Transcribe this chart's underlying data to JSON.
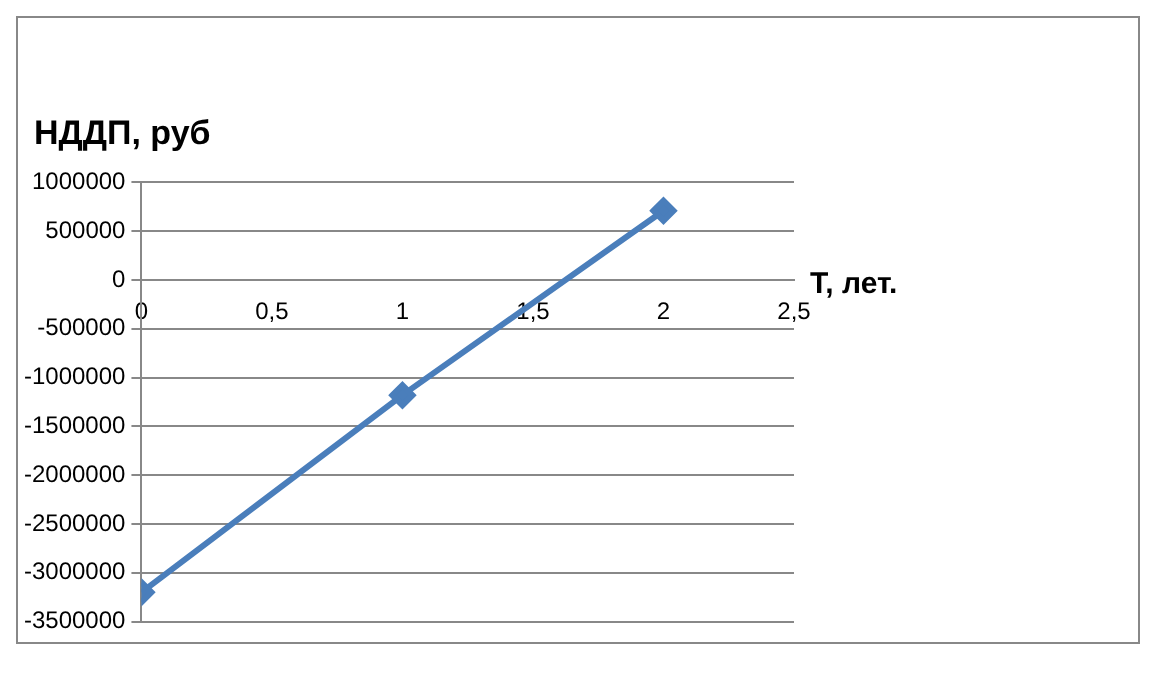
{
  "chart_data": {
    "type": "line",
    "ylabel": "НДДП, руб",
    "xlabel": "Т, лет.",
    "x": [
      0,
      1,
      2
    ],
    "series": [
      {
        "color": "#4a7ebb",
        "values": [
          -3200000,
          -1180000,
          710000
        ]
      }
    ],
    "xlim": [
      0,
      2.5
    ],
    "xticks": [
      0,
      {
        "value": 0.5,
        "label": "0,5"
      },
      1,
      {
        "value": 1.5,
        "label": "1,5"
      },
      2,
      {
        "value": 2.5,
        "label": "2,5"
      }
    ],
    "ylim": [
      -3500000,
      1000000
    ],
    "yticks": [
      -3500000,
      -3000000,
      -2500000,
      -2000000,
      -1500000,
      -1000000,
      -500000,
      0,
      500000,
      1000000
    ],
    "grid": "y",
    "legend": false,
    "marker": "diamond",
    "line_style": "solid"
  }
}
